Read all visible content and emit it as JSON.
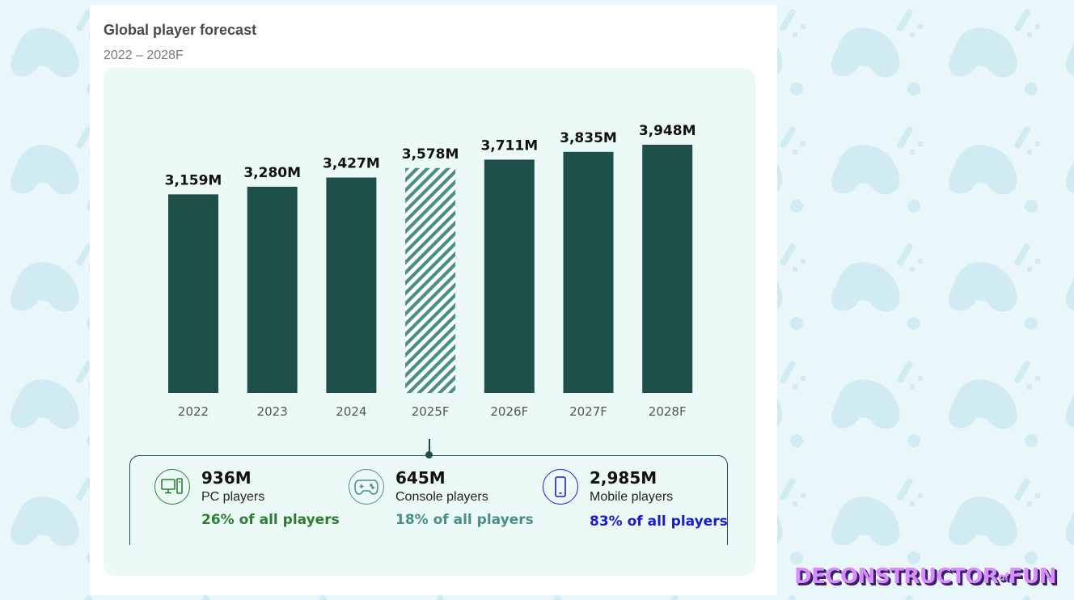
{
  "card": {
    "title": "Global player forecast",
    "subtitle": "2022 – 2028F"
  },
  "chart_data": {
    "type": "bar",
    "categories": [
      "2022",
      "2023",
      "2024",
      "2025F",
      "2026F",
      "2027F",
      "2028F"
    ],
    "values": [
      3159,
      3280,
      3427,
      3578,
      3711,
      3835,
      3948
    ],
    "value_labels": [
      "3,159M",
      "3,280M",
      "3,427M",
      "3,578M",
      "3,711M",
      "3,835M",
      "3,948M"
    ],
    "highlighted_index": 3,
    "unit": "M players",
    "title": "Global player forecast",
    "subtitle": "2022 – 2028F",
    "xlabel": "",
    "ylabel": "",
    "ylim": [
      0,
      3948
    ],
    "grid": false
  },
  "segments": [
    {
      "value": "936M",
      "label": "PC players",
      "share": "26% of all players",
      "icon": "pc-icon",
      "color": "#2e7d32"
    },
    {
      "value": "645M",
      "label": "Console players",
      "share": "18% of all players",
      "icon": "gamepad-icon",
      "color": "#4a8f86"
    },
    {
      "value": "2,985M",
      "label": "Mobile players",
      "share": "83% of all players",
      "icon": "mobile-icon",
      "color": "#1a1ad6"
    }
  ],
  "colors": {
    "bar": "#1f4f4a",
    "hatch": "#4a8f86",
    "panel": "#ebfaf6",
    "background": "#e9f7fa"
  },
  "logo": {
    "part1": "DECONSTRUCTOR",
    "part2": "of",
    "part3": "FUN"
  }
}
